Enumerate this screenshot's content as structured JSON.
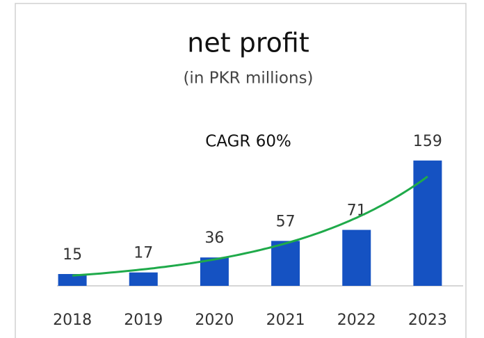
{
  "chart_data": {
    "type": "bar",
    "title": "net profit",
    "subtitle": "(in PKR millions)",
    "annotation": "CAGR 60%",
    "categories": [
      "2018",
      "2019",
      "2020",
      "2021",
      "2022",
      "2023"
    ],
    "values": [
      15,
      17,
      36,
      57,
      71,
      159
    ],
    "color": "#1552c2",
    "trend": "exponential",
    "trend_color": "#1faa4a",
    "ylim": [
      0,
      180
    ]
  }
}
